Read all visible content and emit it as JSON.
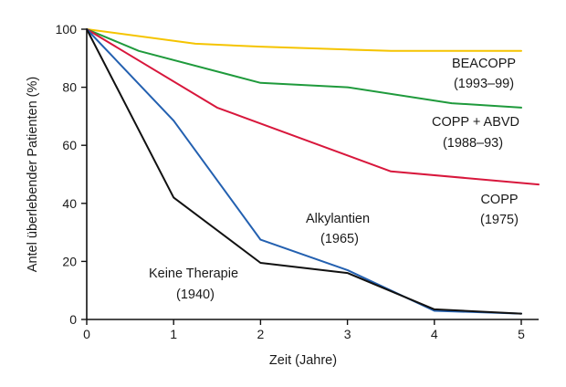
{
  "chart_data": {
    "type": "line",
    "xlabel": "Zeit (Jahre)",
    "ylabel": "Antel überlebender Patienten (%)",
    "xlim": [
      0,
      5.2
    ],
    "ylim": [
      0,
      100
    ],
    "xticks": [
      "0",
      "1",
      "2",
      "3",
      "4",
      "5"
    ],
    "yticks": [
      "0",
      "20",
      "40",
      "60",
      "80",
      "100"
    ],
    "grid": false,
    "series": [
      {
        "color": "#f5c400",
        "x": [
          0,
          1.25,
          2,
          3,
          3.5,
          4,
          4.5,
          5
        ],
        "y": [
          100,
          95,
          94,
          93,
          92.5,
          92.5,
          92.5,
          92.5
        ]
      },
      {
        "color": "#1f9a3c",
        "x": [
          0,
          0.6,
          2,
          3,
          4.2,
          5
        ],
        "y": [
          100,
          92.5,
          81.5,
          80,
          74.5,
          73
        ]
      },
      {
        "color": "#d8173c",
        "x": [
          0,
          1.5,
          3.5,
          5.2
        ],
        "y": [
          100,
          73,
          51,
          46.5
        ]
      },
      {
        "color": "#2360b0",
        "x": [
          0,
          1,
          2,
          3,
          4,
          5
        ],
        "y": [
          100,
          68.5,
          27.5,
          17,
          3,
          2
        ]
      },
      {
        "color": "#111111",
        "x": [
          0,
          1,
          2,
          3,
          4,
          5
        ],
        "y": [
          100,
          42,
          19.5,
          16,
          3.5,
          2
        ]
      }
    ],
    "annotations": [
      {
        "name": "annot-beacopp",
        "lines": [
          "BEACOPP",
          "(1993–99)"
        ],
        "anchor": "middle"
      },
      {
        "name": "annot-copp-abvd",
        "lines": [
          "COPP + ABVD",
          "(1988–93)"
        ],
        "anchor": "middle"
      },
      {
        "name": "annot-copp",
        "lines": [
          "COPP",
          "(1975)"
        ],
        "anchor": "middle"
      },
      {
        "name": "annot-alkylantien",
        "lines": [
          "Alkylantien",
          "(1965)"
        ],
        "anchor": "middle"
      },
      {
        "name": "annot-keine-therapie",
        "lines": [
          "Keine Therapie",
          "(1940)"
        ],
        "anchor": "middle"
      }
    ]
  }
}
